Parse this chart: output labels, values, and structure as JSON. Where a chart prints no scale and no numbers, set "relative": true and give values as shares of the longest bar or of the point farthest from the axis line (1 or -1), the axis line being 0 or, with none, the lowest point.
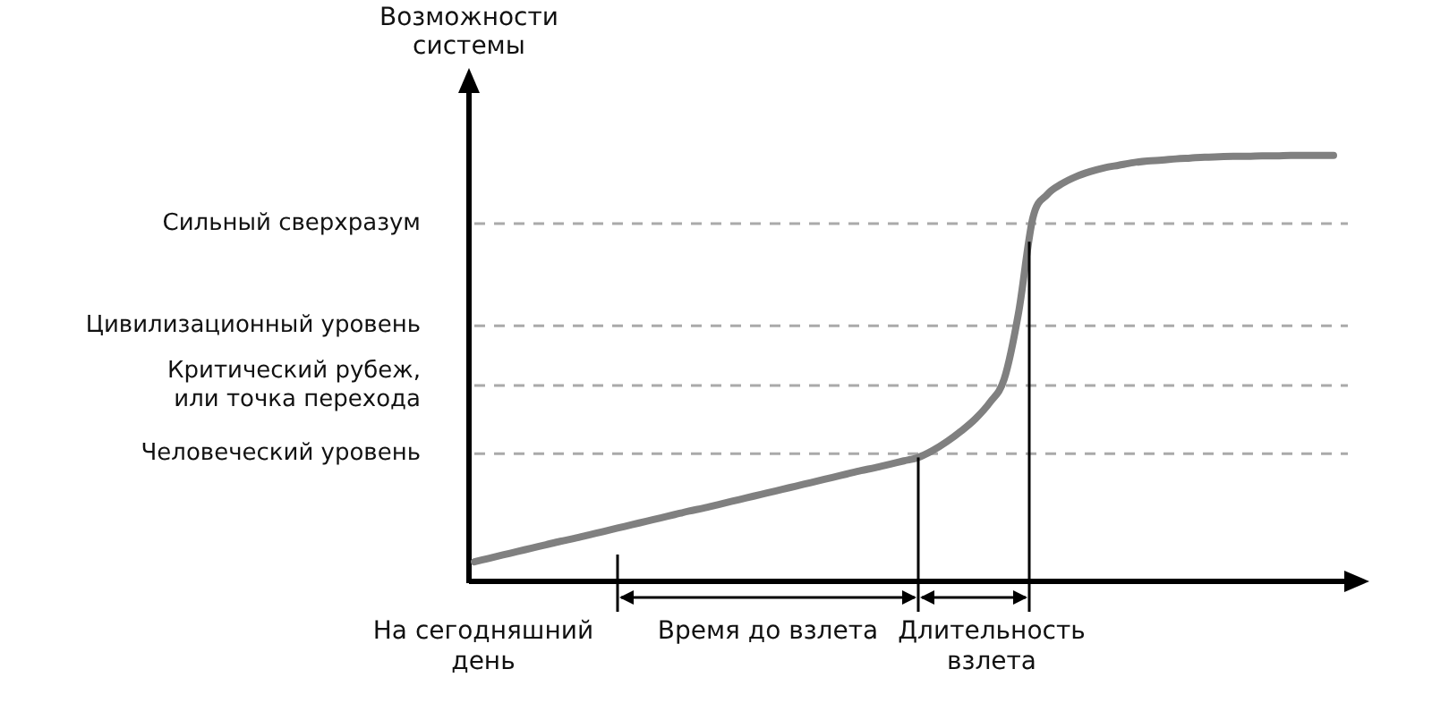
{
  "chart_data": {
    "type": "line",
    "ylabel": "Возможности системы",
    "relative": true,
    "marker": "none",
    "line_style": "solid",
    "legend": false,
    "categories": [
      null,
      null,
      null,
      null,
      null,
      null,
      null,
      null,
      null,
      null,
      null,
      null,
      null,
      null,
      null,
      null,
      null,
      null,
      null,
      null,
      null,
      null,
      null,
      null,
      null,
      null,
      null,
      null,
      null,
      null,
      null,
      null,
      null,
      null,
      null,
      null,
      null,
      null,
      null,
      null,
      null,
      null,
      null,
      null,
      null,
      null,
      null,
      null,
      null,
      null,
      null,
      null,
      null,
      null,
      null,
      null,
      null,
      null,
      null,
      null,
      null
    ],
    "series": [
      {
        "color": "#808080",
        "values": [
          0.046,
          0.054,
          0.062,
          0.07,
          0.078,
          0.086,
          0.094,
          0.101,
          0.109,
          0.117,
          0.125,
          0.133,
          0.141,
          0.149,
          0.157,
          0.165,
          0.172,
          0.18,
          0.188,
          0.196,
          0.204,
          0.212,
          0.22,
          0.228,
          0.236,
          0.244,
          0.252,
          0.26,
          0.267,
          0.275,
          0.283,
          0.291,
          0.307,
          0.328,
          0.353,
          0.382,
          0.42,
          0.475,
          0.63,
          0.853,
          0.908,
          0.933,
          0.95,
          0.962,
          0.971,
          0.977,
          0.983,
          0.987,
          0.989,
          0.992,
          0.994,
          0.996,
          0.997,
          0.998,
          0.998,
          0.999,
          0.999,
          1,
          1,
          1,
          1
        ]
      }
    ],
    "ref_lines": [
      {
        "axis": "y",
        "value": 0.84,
        "label": "Сильный сверхразум",
        "color": "#aaaaaa",
        "line_style": "dashed"
      },
      {
        "axis": "y",
        "value": 0.6,
        "label": "Цивилизационный уровень",
        "color": "#aaaaaa",
        "line_style": "dashed"
      },
      {
        "axis": "y",
        "value": 0.46,
        "label": "Критический рубеж, или точка перехода",
        "color": "#aaaaaa",
        "line_style": "dashed"
      },
      {
        "axis": "y",
        "value": 0.3,
        "label": "Человеческий уровень",
        "color": "#aaaaaa",
        "line_style": "dashed"
      }
    ],
    "annotations": [
      "На сегодняшний день",
      "Время до взлета",
      "Длительность взлета"
    ]
  }
}
